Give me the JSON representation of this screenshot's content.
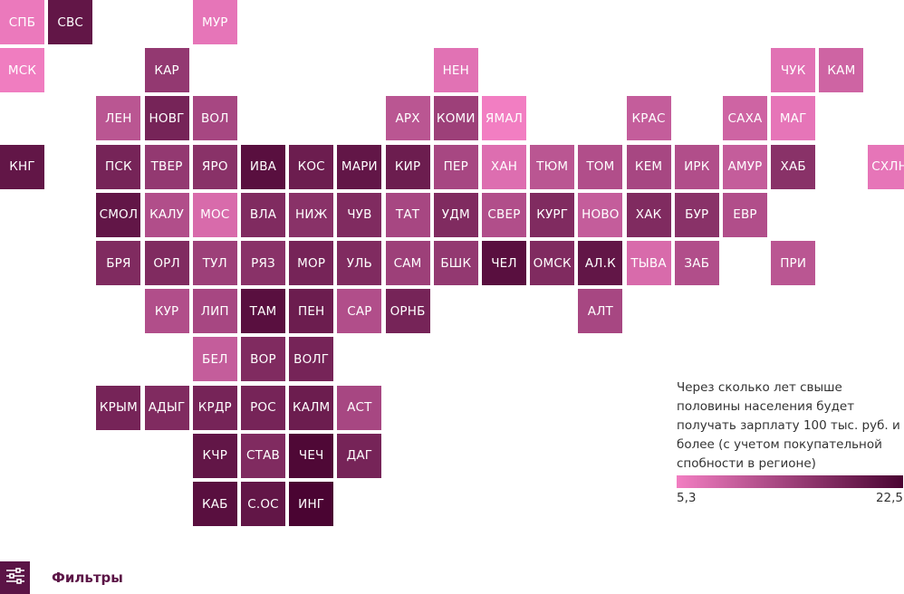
{
  "colors": {
    "low": "#f27ec2",
    "high": "#4a0432",
    "accent": "#5b1446"
  },
  "legend": {
    "title": "Через сколько лет свыше половины населения будет получать зарплату 100 тыс. руб. и более (с учетом покупательной спобности в регионе)",
    "min_label": "5,3",
    "max_label": "22,5",
    "min": 5.3,
    "max": 22.5
  },
  "filters": {
    "label": "Фильтры",
    "icon": "sliders-icon"
  },
  "regions": [
    {
      "label": "СПБ",
      "col": 0,
      "row": 0,
      "value": 6
    },
    {
      "label": "СВС",
      "col": 1,
      "row": 0,
      "value": 20
    },
    {
      "label": "МУР",
      "col": 4,
      "row": 0,
      "value": 6.5
    },
    {
      "label": "МСК",
      "col": 0,
      "row": 1,
      "value": 5.5
    },
    {
      "label": "КАР",
      "col": 3,
      "row": 1,
      "value": 15
    },
    {
      "label": "НЕН",
      "col": 9,
      "row": 1,
      "value": 7
    },
    {
      "label": "ЧУК",
      "col": 16,
      "row": 1,
      "value": 7
    },
    {
      "label": "КАМ",
      "col": 17,
      "row": 1,
      "value": 9
    },
    {
      "label": "ЛЕН",
      "col": 2,
      "row": 2,
      "value": 11
    },
    {
      "label": "НОВГ",
      "col": 3,
      "row": 2,
      "value": 18
    },
    {
      "label": "ВОЛ",
      "col": 4,
      "row": 2,
      "value": 13
    },
    {
      "label": "АРХ",
      "col": 8,
      "row": 2,
      "value": 11
    },
    {
      "label": "КОМИ",
      "col": 9,
      "row": 2,
      "value": 14
    },
    {
      "label": "ЯМАЛ",
      "col": 10,
      "row": 2,
      "value": 5.3
    },
    {
      "label": "КРАС",
      "col": 13,
      "row": 2,
      "value": 10
    },
    {
      "label": "САХА",
      "col": 15,
      "row": 2,
      "value": 9
    },
    {
      "label": "МАГ",
      "col": 16,
      "row": 2,
      "value": 6.5
    },
    {
      "label": "КНГ",
      "col": 0,
      "row": 3,
      "value": 20
    },
    {
      "label": "ПСК",
      "col": 2,
      "row": 3,
      "value": 18
    },
    {
      "label": "ТВЕР",
      "col": 3,
      "row": 3,
      "value": 15
    },
    {
      "label": "ЯРО",
      "col": 4,
      "row": 3,
      "value": 16
    },
    {
      "label": "ИВА",
      "col": 5,
      "row": 3,
      "value": 21
    },
    {
      "label": "КОС",
      "col": 6,
      "row": 3,
      "value": 19
    },
    {
      "label": "МАРИ",
      "col": 7,
      "row": 3,
      "value": 20
    },
    {
      "label": "КИР",
      "col": 8,
      "row": 3,
      "value": 19
    },
    {
      "label": "ПЕР",
      "col": 9,
      "row": 3,
      "value": 13
    },
    {
      "label": "ХАН",
      "col": 10,
      "row": 3,
      "value": 7.5
    },
    {
      "label": "ТЮМ",
      "col": 11,
      "row": 3,
      "value": 11
    },
    {
      "label": "ТОМ",
      "col": 12,
      "row": 3,
      "value": 12
    },
    {
      "label": "КЕМ",
      "col": 13,
      "row": 3,
      "value": 13
    },
    {
      "label": "ИРК",
      "col": 14,
      "row": 3,
      "value": 12
    },
    {
      "label": "АМУР",
      "col": 15,
      "row": 3,
      "value": 10
    },
    {
      "label": "ХАБ",
      "col": 16,
      "row": 3,
      "value": 16
    },
    {
      "label": "СХЛН",
      "col": 18,
      "row": 3,
      "value": 6.5
    },
    {
      "label": "СМОЛ",
      "col": 2,
      "row": 4,
      "value": 20
    },
    {
      "label": "КАЛУ",
      "col": 3,
      "row": 4,
      "value": 12
    },
    {
      "label": "МОС",
      "col": 4,
      "row": 4,
      "value": 8
    },
    {
      "label": "ВЛА",
      "col": 5,
      "row": 4,
      "value": 17
    },
    {
      "label": "НИЖ",
      "col": 6,
      "row": 4,
      "value": 16
    },
    {
      "label": "ЧУВ",
      "col": 7,
      "row": 4,
      "value": 17
    },
    {
      "label": "ТАТ",
      "col": 8,
      "row": 4,
      "value": 13
    },
    {
      "label": "УДМ",
      "col": 9,
      "row": 4,
      "value": 17
    },
    {
      "label": "СВЕР",
      "col": 10,
      "row": 4,
      "value": 12
    },
    {
      "label": "КУРГ",
      "col": 11,
      "row": 4,
      "value": 17
    },
    {
      "label": "НОВО",
      "col": 12,
      "row": 4,
      "value": 10
    },
    {
      "label": "ХАК",
      "col": 13,
      "row": 4,
      "value": 17
    },
    {
      "label": "БУР",
      "col": 14,
      "row": 4,
      "value": 16
    },
    {
      "label": "ЕВР",
      "col": 15,
      "row": 4,
      "value": 12
    },
    {
      "label": "БРЯ",
      "col": 2,
      "row": 5,
      "value": 17
    },
    {
      "label": "ОРЛ",
      "col": 3,
      "row": 5,
      "value": 17
    },
    {
      "label": "ТУЛ",
      "col": 4,
      "row": 5,
      "value": 14
    },
    {
      "label": "РЯЗ",
      "col": 5,
      "row": 5,
      "value": 16
    },
    {
      "label": "МОР",
      "col": 6,
      "row": 5,
      "value": 18
    },
    {
      "label": "УЛЬ",
      "col": 7,
      "row": 5,
      "value": 17
    },
    {
      "label": "САМ",
      "col": 8,
      "row": 5,
      "value": 14
    },
    {
      "label": "БШК",
      "col": 9,
      "row": 5,
      "value": 15
    },
    {
      "label": "ЧЕЛ",
      "col": 10,
      "row": 5,
      "value": 21
    },
    {
      "label": "ОМСК",
      "col": 11,
      "row": 5,
      "value": 17
    },
    {
      "label": "АЛ.К",
      "col": 12,
      "row": 5,
      "value": 20
    },
    {
      "label": "ТЫВА",
      "col": 13,
      "row": 5,
      "value": 8
    },
    {
      "label": "ЗАБ",
      "col": 14,
      "row": 5,
      "value": 12
    },
    {
      "label": "ПРИ",
      "col": 16,
      "row": 5,
      "value": 11
    },
    {
      "label": "КУР",
      "col": 3,
      "row": 6,
      "value": 12
    },
    {
      "label": "ЛИП",
      "col": 4,
      "row": 6,
      "value": 13
    },
    {
      "label": "ТАМ",
      "col": 5,
      "row": 6,
      "value": 21
    },
    {
      "label": "ПЕН",
      "col": 6,
      "row": 6,
      "value": 19
    },
    {
      "label": "САР",
      "col": 7,
      "row": 6,
      "value": 12
    },
    {
      "label": "ОРНБ",
      "col": 8,
      "row": 6,
      "value": 18
    },
    {
      "label": "АЛТ",
      "col": 12,
      "row": 6,
      "value": 13
    },
    {
      "label": "БЕЛ",
      "col": 4,
      "row": 7,
      "value": 10
    },
    {
      "label": "ВОР",
      "col": 5,
      "row": 7,
      "value": 17
    },
    {
      "label": "ВОЛГ",
      "col": 6,
      "row": 7,
      "value": 18
    },
    {
      "label": "КРЫМ",
      "col": 2,
      "row": 8,
      "value": 18
    },
    {
      "label": "АДЫГ",
      "col": 3,
      "row": 8,
      "value": 17
    },
    {
      "label": "КРДР",
      "col": 4,
      "row": 8,
      "value": 18
    },
    {
      "label": "РОС",
      "col": 5,
      "row": 8,
      "value": 18
    },
    {
      "label": "КАЛМ",
      "col": 6,
      "row": 8,
      "value": 19
    },
    {
      "label": "АСТ",
      "col": 7,
      "row": 8,
      "value": 13
    },
    {
      "label": "КЧР",
      "col": 4,
      "row": 9,
      "value": 20
    },
    {
      "label": "СТАВ",
      "col": 5,
      "row": 9,
      "value": 17
    },
    {
      "label": "ЧЕЧ",
      "col": 6,
      "row": 9,
      "value": 22
    },
    {
      "label": "ДАГ",
      "col": 7,
      "row": 9,
      "value": 18
    },
    {
      "label": "КАБ",
      "col": 4,
      "row": 10,
      "value": 21
    },
    {
      "label": "С.ОС",
      "col": 5,
      "row": 10,
      "value": 20
    },
    {
      "label": "ИНГ",
      "col": 6,
      "row": 10,
      "value": 22.5
    }
  ]
}
